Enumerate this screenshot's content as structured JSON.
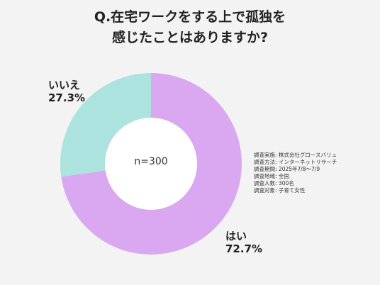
{
  "title_lines": [
    "Q.在宅ワークをする上で孤独を",
    "感じたことはありますか?"
  ],
  "center_text": "n=300",
  "chart_data": {
    "type": "pie",
    "donut": true,
    "title": "Q.在宅ワークをする上で孤独を感じたことはありますか?",
    "slices": [
      {
        "label": "はい",
        "value": 72.7,
        "value_label": "72.7%",
        "color": "#d9a8f0"
      },
      {
        "label": "いいえ",
        "value": 27.3,
        "value_label": "27.3%",
        "color": "#ade3df"
      }
    ],
    "center_label": "n=300"
  },
  "survey_info": [
    {
      "key": "調査実施",
      "value": "株式会社グロースバリュ"
    },
    {
      "key": "調査方法",
      "value": "インターネットリサーチ"
    },
    {
      "key": "調査期間",
      "value": "2025年7/8〜7/9"
    },
    {
      "key": "調査地域",
      "value": "全国"
    },
    {
      "key": "調査人数",
      "value": "300名"
    },
    {
      "key": "調査対象",
      "value": "子育て女性"
    }
  ],
  "colors": {
    "background": "#f3f3f3",
    "yes": "#d9a8f0",
    "no": "#ade3df",
    "hole": "#ffffff"
  }
}
